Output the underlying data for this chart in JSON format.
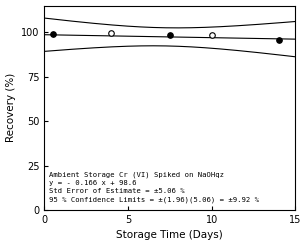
{
  "title": "",
  "xlabel": "Storage Time (Days)",
  "ylabel": "Recovery (%)",
  "annotation_lines": [
    "Ambient Storage Cr (VI) Spiked on NaOHqz",
    "y = - 0.166 x + 98.6",
    "Std Error of Estimate = ±5.06 %",
    "95 % Confidence Limits = ±(1.96)(5.06) = ±9.92 %"
  ],
  "slope": -0.166,
  "intercept": 98.6,
  "std_err": 5.06,
  "conf_limit": 9.92,
  "x_data": [
    0.5,
    4,
    7.5,
    10,
    14
  ],
  "y_data": [
    99.0,
    99.5,
    98.5,
    98.3,
    95.6
  ],
  "n_points": 5,
  "xlim": [
    0,
    15
  ],
  "ylim": [
    0,
    115
  ],
  "yticks": [
    0,
    25,
    50,
    75,
    100
  ],
  "xticks": [
    0,
    5,
    10,
    15
  ],
  "background_color": "#ffffff",
  "line_color": "#000000",
  "fontsize_annotation": 5.2,
  "fontsize_ticks": 7,
  "fontsize_labels": 7.5
}
